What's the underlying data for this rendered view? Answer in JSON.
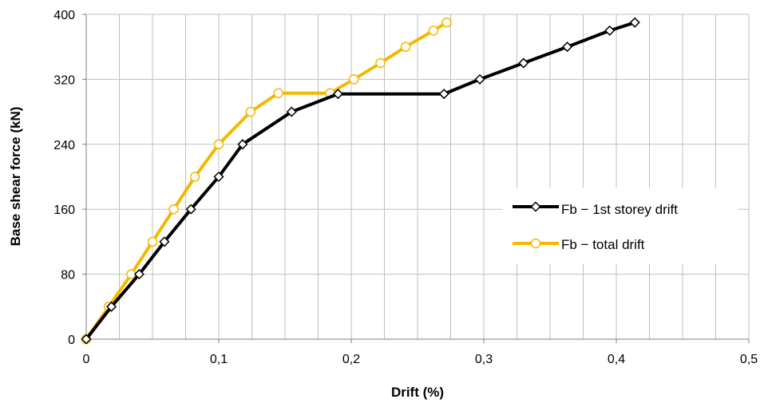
{
  "chart_data": {
    "type": "line",
    "xlabel": "Drift  (%)",
    "ylabel": "Base shear force (kN)",
    "xlim": [
      0,
      0.5
    ],
    "ylim": [
      0,
      400
    ],
    "x_ticks": [
      "0",
      "0,1",
      "0,2",
      "0,3",
      "0,4",
      "0,5"
    ],
    "y_ticks": [
      "0",
      "80",
      "160",
      "240",
      "320",
      "400"
    ],
    "x_minor_step": 0.025,
    "y_major_step": 80,
    "grid": true,
    "legend_position": "right",
    "series": [
      {
        "name": "Fb − 1st storey drift",
        "color": "#000000",
        "marker": "diamond",
        "x": [
          0,
          0.019,
          0.04,
          0.059,
          0.079,
          0.1,
          0.118,
          0.155,
          0.19,
          0.27,
          0.297,
          0.33,
          0.363,
          0.395,
          0.414
        ],
        "y": [
          0,
          40,
          80,
          120,
          160,
          200,
          240,
          280,
          302,
          302,
          320,
          340,
          360,
          380,
          390
        ]
      },
      {
        "name": "Fb − total drift",
        "color": "#F5B800",
        "marker": "circle",
        "x": [
          0,
          0.017,
          0.034,
          0.05,
          0.066,
          0.082,
          0.1,
          0.124,
          0.145,
          0.184,
          0.202,
          0.222,
          0.241,
          0.262,
          0.272
        ],
        "y": [
          0,
          40,
          80,
          120,
          160,
          200,
          240,
          280,
          303,
          303,
          320,
          340,
          360,
          380,
          390
        ]
      }
    ]
  }
}
